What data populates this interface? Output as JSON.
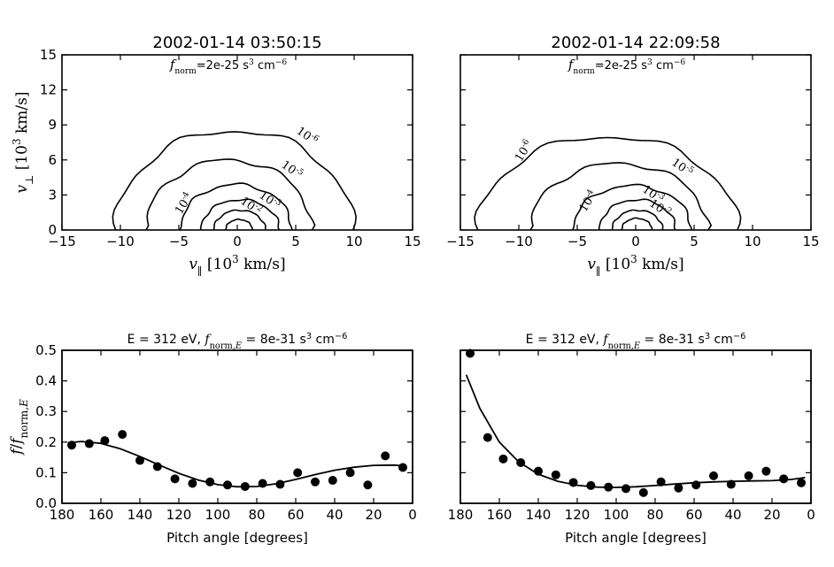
{
  "chart_data": [
    {
      "type": "contour",
      "title": "2002-01-14 03:50:15",
      "annotation": "f_norm=2e-25 s^3 cm^-6",
      "xlabel": "v_∥  [10^3  km/s]",
      "ylabel": "v_⊥  [10^3  km/s]",
      "xlim": [
        -15,
        15
      ],
      "ylim": [
        0,
        15
      ],
      "xticks": [
        -15,
        -10,
        -5,
        0,
        5,
        10,
        15
      ],
      "yticks": [
        0,
        3,
        6,
        9,
        12,
        15
      ],
      "levels": [
        {
          "label": "10^-6",
          "x_extent": [
            -10.4,
            9.9
          ],
          "y_max": 8.5
        },
        {
          "label": "10^-5",
          "x_extent": [
            -7.8,
            6.4
          ],
          "y_max": 6.0
        },
        {
          "label": "10^-4",
          "x_extent": [
            -4.9,
            4.7
          ],
          "y_max": 3.9
        },
        {
          "label": "10^-3",
          "x_extent": [
            -3.1,
            3.6
          ],
          "y_max": 2.6
        },
        {
          "label": "10^-2",
          "x_extent": [
            -2.0,
            2.4
          ],
          "y_max": 1.7
        },
        {
          "label": "",
          "x_extent": [
            -1.0,
            1.3
          ],
          "y_max": 0.9
        }
      ],
      "contour_labels": [
        {
          "text": "10^-6",
          "x": 5.8,
          "y": 7.8
        },
        {
          "text": "10^-5",
          "x": 4.5,
          "y": 4.9
        },
        {
          "text": "10^-4",
          "x": -4.3,
          "y": 2.1
        },
        {
          "text": "10^-3",
          "x": 2.6,
          "y": 2.3
        },
        {
          "text": "10^-2",
          "x": 1.0,
          "y": 1.8
        }
      ]
    },
    {
      "type": "contour",
      "title": "2002-01-14 22:09:58",
      "annotation": "f_norm=2e-25 s^3 cm^-6",
      "xlabel": "v_∥  [10^3  km/s]",
      "ylabel": "",
      "xlim": [
        -15,
        15
      ],
      "ylim": [
        0,
        15
      ],
      "xticks": [
        -15,
        -10,
        -5,
        0,
        5,
        10,
        15
      ],
      "yticks": [
        0,
        3,
        6,
        9,
        12,
        15
      ],
      "levels": [
        {
          "label": "10^-6",
          "x_extent": [
            -13.5,
            8.7
          ],
          "y_max": 8.0
        },
        {
          "label": "10^-5",
          "x_extent": [
            -9.0,
            6.2
          ],
          "y_max": 5.7
        },
        {
          "label": "10^-4",
          "x_extent": [
            -5.4,
            4.8
          ],
          "y_max": 3.8
        },
        {
          "label": "10^-3",
          "x_extent": [
            -3.1,
            3.4
          ],
          "y_max": 2.6
        },
        {
          "label": "10^-2",
          "x_extent": [
            -2.0,
            2.3
          ],
          "y_max": 1.7
        },
        {
          "label": "",
          "x_extent": [
            -1.2,
            1.4
          ],
          "y_max": 1.0
        }
      ],
      "contour_labels": [
        {
          "text": "10^-6",
          "x": -9.3,
          "y": 6.6
        },
        {
          "text": "10^-5",
          "x": 3.8,
          "y": 5.1
        },
        {
          "text": "10^-4",
          "x": -3.8,
          "y": 2.3
        },
        {
          "text": "10^-3",
          "x": 1.3,
          "y": 2.8
        },
        {
          "text": "10^-2",
          "x": 1.9,
          "y": 1.6
        }
      ]
    },
    {
      "type": "scatter",
      "title": "E = 312 eV, f_norm,E = 8e-31 s^3 cm^-6",
      "xlabel": "Pitch angle [degrees]",
      "ylabel": "f / f_norm,E",
      "xlim": [
        180,
        0
      ],
      "ylim": [
        0,
        0.5
      ],
      "xticks": [
        180,
        160,
        140,
        120,
        100,
        80,
        60,
        40,
        20,
        0
      ],
      "yticks": [
        0.0,
        0.1,
        0.2,
        0.3,
        0.4,
        0.5
      ],
      "ytick_labels": [
        "0.0",
        "0.1",
        "0.2",
        "0.3",
        "0.4",
        "0.5"
      ],
      "points": {
        "x": [
          175,
          166,
          158,
          149,
          140,
          131,
          122,
          113,
          104,
          95,
          86,
          77,
          68,
          59,
          50,
          41,
          32,
          23,
          14,
          5
        ],
        "y": [
          0.19,
          0.195,
          0.205,
          0.225,
          0.14,
          0.12,
          0.08,
          0.065,
          0.07,
          0.06,
          0.055,
          0.065,
          0.062,
          0.1,
          0.07,
          0.075,
          0.1,
          0.06,
          0.155,
          0.117
        ]
      },
      "fit": {
        "x": [
          177,
          170,
          160,
          150,
          140,
          130,
          120,
          110,
          100,
          90,
          80,
          70,
          60,
          50,
          40,
          30,
          20,
          10,
          3
        ],
        "y": [
          0.198,
          0.202,
          0.196,
          0.178,
          0.153,
          0.125,
          0.098,
          0.076,
          0.061,
          0.054,
          0.055,
          0.064,
          0.078,
          0.094,
          0.108,
          0.118,
          0.124,
          0.125,
          0.122
        ]
      }
    },
    {
      "type": "scatter",
      "title": "E = 312 eV, f_norm,E = 8e-31 s^3 cm^-6",
      "xlabel": "Pitch angle [degrees]",
      "ylabel": "",
      "xlim": [
        180,
        0
      ],
      "ylim": [
        0,
        0.5
      ],
      "xticks": [
        180,
        160,
        140,
        120,
        100,
        80,
        60,
        40,
        20,
        0
      ],
      "yticks": [
        0.0,
        0.1,
        0.2,
        0.3,
        0.4,
        0.5
      ],
      "points": {
        "x": [
          175,
          166,
          158,
          149,
          140,
          131,
          122,
          113,
          104,
          95,
          86,
          77,
          68,
          59,
          50,
          41,
          32,
          23,
          14,
          5
        ],
        "y": [
          0.49,
          0.215,
          0.145,
          0.133,
          0.105,
          0.093,
          0.068,
          0.058,
          0.053,
          0.048,
          0.035,
          0.07,
          0.05,
          0.06,
          0.09,
          0.062,
          0.09,
          0.105,
          0.08,
          0.067
        ]
      },
      "fit": {
        "x": [
          177,
          170,
          160,
          150,
          140,
          130,
          120,
          110,
          100,
          90,
          80,
          70,
          60,
          50,
          40,
          30,
          20,
          10,
          3
        ],
        "y": [
          0.42,
          0.31,
          0.2,
          0.135,
          0.095,
          0.072,
          0.059,
          0.053,
          0.052,
          0.054,
          0.058,
          0.063,
          0.067,
          0.07,
          0.072,
          0.073,
          0.074,
          0.078,
          0.084
        ]
      }
    }
  ]
}
